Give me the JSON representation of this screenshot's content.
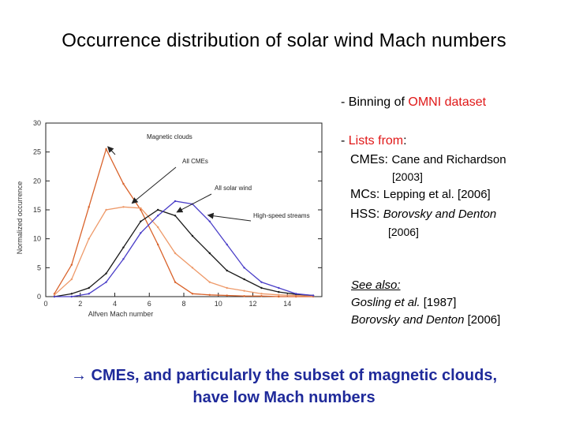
{
  "title": "Occurrence distribution of solar wind Mach numbers",
  "bullets": {
    "b1_dash": "- Binning of ",
    "b1_red": "OMNI dataset",
    "b2_dash": "- ",
    "b2_red": "Lists from",
    "b2_colon": ":",
    "cme_label": "CMEs: ",
    "cme_text": "Cane and Richardson",
    "cme_year": "[2003]",
    "mc_label": "MCs: ",
    "mc_text": "Lepping et al. [2006]",
    "hss_label": "HSS: ",
    "hss_text": "Borovsky and Denton",
    "hss_year": "[2006]"
  },
  "see_also": {
    "heading": "See also:",
    "ref1_italic": "Gosling et al.",
    "ref1_year": " [1987]",
    "ref2_italic": "Borovsky and Denton",
    "ref2_year": " [2006]"
  },
  "conclusion": {
    "arrow": "→",
    "line1": " CMEs, and particularly the subset of magnetic clouds,",
    "line2": "have low Mach numbers"
  },
  "chart_data": {
    "type": "line",
    "xlabel": "Alfven Mach number",
    "ylabel": "Normalized occurrence",
    "xlim": [
      0,
      16
    ],
    "ylim": [
      0,
      30
    ],
    "xticks": [
      0,
      2,
      4,
      6,
      8,
      10,
      12,
      14
    ],
    "yticks": [
      0,
      5,
      10,
      15,
      20,
      25,
      30
    ],
    "grid": false,
    "series": [
      {
        "name": "Magnetic clouds",
        "color": "#d9622a",
        "x": [
          0.5,
          1.5,
          2.5,
          3.5,
          4.5,
          5.5,
          6.5,
          7.5,
          8.5,
          9.5,
          10.5,
          11.5,
          12.5,
          13.5,
          14.5,
          15.5
        ],
        "values": [
          0.5,
          5.5,
          15.5,
          25.5,
          19.5,
          15.0,
          9.0,
          2.5,
          0.5,
          0.3,
          0.2,
          0.1,
          0.1,
          0.0,
          0.0,
          0.0
        ]
      },
      {
        "name": "All CMEs",
        "color": "#ee9a6a",
        "x": [
          0.5,
          1.5,
          2.5,
          3.5,
          4.5,
          5.5,
          6.5,
          7.5,
          8.5,
          9.5,
          10.5,
          11.5,
          12.5,
          13.5,
          14.5,
          15.5
        ],
        "values": [
          0.3,
          3.0,
          10.0,
          15.0,
          15.5,
          15.3,
          12.0,
          7.5,
          5.0,
          2.5,
          1.5,
          1.0,
          0.5,
          0.3,
          0.2,
          0.1
        ]
      },
      {
        "name": "All solar wind",
        "color": "#1a1a1a",
        "x": [
          0.5,
          1.5,
          2.5,
          3.5,
          4.5,
          5.5,
          6.5,
          7.5,
          8.5,
          9.5,
          10.5,
          11.5,
          12.5,
          13.5,
          14.5,
          15.5
        ],
        "values": [
          0.0,
          0.5,
          1.5,
          4.0,
          8.5,
          13.0,
          15.0,
          14.0,
          10.5,
          7.5,
          4.5,
          3.0,
          1.5,
          0.8,
          0.4,
          0.2
        ]
      },
      {
        "name": "High-speed streams",
        "color": "#4a3ec8",
        "x": [
          0.5,
          1.5,
          2.5,
          3.5,
          4.5,
          5.5,
          6.5,
          7.5,
          8.5,
          9.5,
          10.5,
          11.5,
          12.5,
          13.5,
          14.5,
          15.5
        ],
        "values": [
          0.0,
          0.0,
          0.5,
          2.5,
          6.5,
          11.0,
          14.0,
          16.5,
          16.0,
          13.0,
          9.0,
          5.0,
          2.5,
          1.5,
          0.5,
          0.2
        ]
      }
    ],
    "annotations": [
      {
        "text": "Magnetic clouds",
        "series": 0
      },
      {
        "text": "All CMEs",
        "series": 1
      },
      {
        "text": "All solar wind",
        "series": 2
      },
      {
        "text": "High-speed streams",
        "series": 3
      }
    ]
  }
}
